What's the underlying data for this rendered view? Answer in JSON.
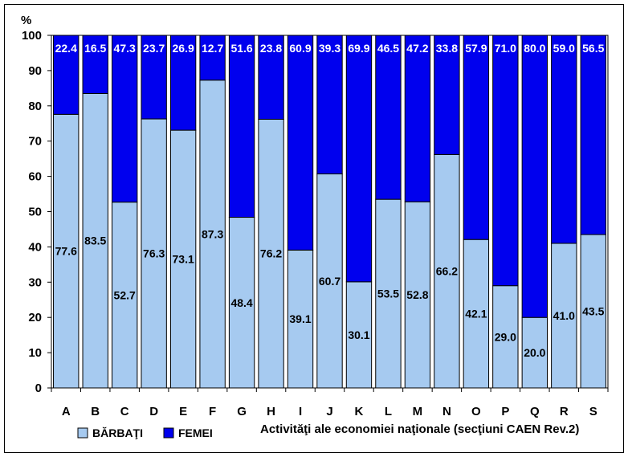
{
  "chart_data": {
    "type": "bar",
    "stacked": true,
    "ylabel": "%",
    "xlabel": "Activităţi ale economiei naţionale (secţiuni CAEN Rev.2)",
    "ylim": [
      0,
      100
    ],
    "yticks": [
      "0",
      "10",
      "20",
      "30",
      "40",
      "50",
      "60",
      "70",
      "80",
      "90",
      "100"
    ],
    "grid": false,
    "legend_position": "bottom-left",
    "categories": [
      "A",
      "B",
      "C",
      "D",
      "E",
      "F",
      "G",
      "H",
      "I",
      "J",
      "K",
      "L",
      "M",
      "N",
      "O",
      "P",
      "Q",
      "R",
      "S"
    ],
    "series": [
      {
        "name": "BĂRBAŢI",
        "color": "#a6caf0",
        "values": [
          77.6,
          83.5,
          52.7,
          76.3,
          73.1,
          87.3,
          48.4,
          76.2,
          39.1,
          60.7,
          30.1,
          53.5,
          52.8,
          66.2,
          42.1,
          29.0,
          20.0,
          41.0,
          43.5
        ],
        "labels": [
          "77.6",
          "83.5",
          "52.7",
          "76.3",
          "73.1",
          "87.3",
          "48.4",
          "76.2",
          "39.1",
          "60.7",
          "30.1",
          "53.5",
          "52.8",
          "66.2",
          "42.1",
          "29.0",
          "20.0",
          "41.0",
          "43.5"
        ]
      },
      {
        "name": "FEMEI",
        "color": "#0000ee",
        "values": [
          22.4,
          16.5,
          47.3,
          23.7,
          26.9,
          12.7,
          51.6,
          23.8,
          60.9,
          39.3,
          69.9,
          46.5,
          47.2,
          33.8,
          57.9,
          71.0,
          80.0,
          59.0,
          56.5
        ],
        "labels": [
          "22.4",
          "16.5",
          "47.3",
          "23.7",
          "26.9",
          "12.7",
          "51.6",
          "23.8",
          "60.9",
          "39.3",
          "69.9",
          "46.5",
          "47.2",
          "33.8",
          "57.9",
          "71.0",
          "80.0",
          "59.0",
          "56.5"
        ]
      }
    ]
  }
}
